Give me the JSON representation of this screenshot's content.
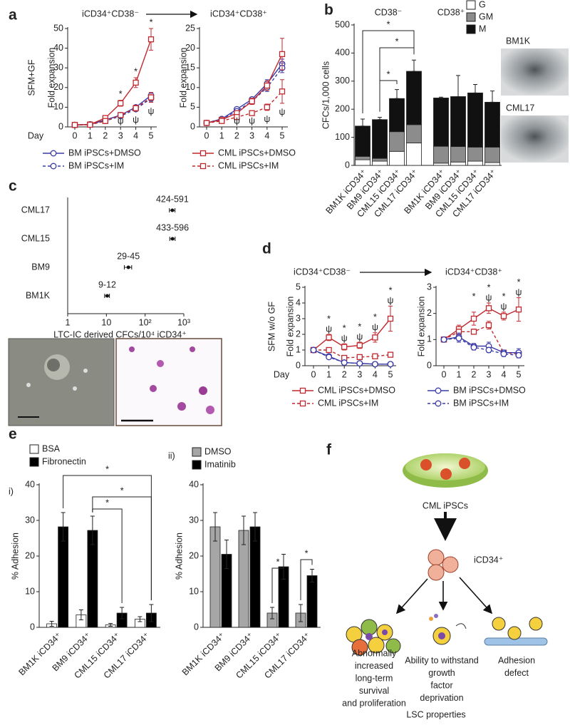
{
  "panels": [
    "a",
    "b",
    "c",
    "d",
    "e",
    "f"
  ],
  "images": {
    "bm1k": "BM1K",
    "cml17": "CML17"
  },
  "chart_data": [
    {
      "type": "line",
      "header": "iCD34⁺CD38⁻",
      "side_label": "SFM+GF",
      "ylabel": "Fold expansion",
      "xlabel": "Day",
      "x": [
        0,
        1,
        2,
        3,
        4,
        5
      ],
      "xlim": [
        0,
        5
      ],
      "xticks": [
        0,
        1,
        2,
        3,
        4,
        5
      ],
      "ylim": [
        0,
        50
      ],
      "yticks": [
        0,
        10,
        20,
        30,
        40,
        50
      ],
      "series": [
        {
          "name": "BM iPSCs+DMSO",
          "color": "#3b3ba8",
          "marker": "circle",
          "dash": false,
          "values": [
            1,
            1.3,
            3.5,
            6,
            10,
            16
          ],
          "errors": [
            0.1,
            0.2,
            0.4,
            0.6,
            1,
            1.5
          ]
        },
        {
          "name": "BM iPSCs+IM",
          "color": "#3b3ba8",
          "marker": "circle",
          "dash": true,
          "values": [
            1,
            1.2,
            3,
            5.5,
            9,
            14.5
          ],
          "errors": [
            0.1,
            0.2,
            0.4,
            0.6,
            1,
            1.5
          ]
        },
        {
          "color": "#c0282d",
          "marker": "square",
          "dash": false,
          "values": [
            1,
            1.2,
            4.5,
            12,
            22.5,
            44.5
          ],
          "errors": [
            0.1,
            0.2,
            0.5,
            1.5,
            2.5,
            5.5
          ]
        },
        {
          "color": "#c0282d",
          "marker": "square",
          "dash": true,
          "values": [
            1,
            1.1,
            3,
            6,
            9.5,
            15
          ],
          "errors": [
            0.1,
            0.2,
            0.4,
            1,
            1.5,
            2.5
          ]
        }
      ],
      "markers": [
        {
          "label": "*",
          "x": [
            3,
            4,
            5
          ]
        },
        {
          "label": "ψ",
          "x": [
            3,
            4,
            5
          ]
        }
      ]
    },
    {
      "type": "line",
      "header": "iCD34⁺CD38⁺",
      "ylabel": "Fold expansion",
      "x": [
        0,
        1,
        2,
        3,
        4,
        5
      ],
      "xlim": [
        0,
        5
      ],
      "xticks": [
        0,
        1,
        2,
        3,
        4,
        5
      ],
      "ylim": [
        0,
        25
      ],
      "yticks": [
        0,
        5,
        10,
        15,
        20,
        25
      ],
      "series": [
        {
          "color": "#3b3ba8",
          "marker": "circle",
          "dash": false,
          "values": [
            1,
            2,
            4.5,
            7,
            11,
            16
          ],
          "errors": [
            0.1,
            0.2,
            0.3,
            0.5,
            1,
            1.2
          ]
        },
        {
          "color": "#3b3ba8",
          "marker": "circle",
          "dash": true,
          "values": [
            1,
            2,
            4,
            6.5,
            10,
            15
          ],
          "errors": [
            0.1,
            0.2,
            0.3,
            0.5,
            1,
            1.2
          ]
        },
        {
          "name": "CML iPSCs+DMSO",
          "color": "#c0282d",
          "marker": "square",
          "dash": false,
          "values": [
            1,
            1.8,
            3.5,
            6.5,
            10.5,
            18.5
          ],
          "errors": [
            0.1,
            0.2,
            0.4,
            0.8,
            1.2,
            4
          ]
        },
        {
          "name": "CML iPSCs+IM",
          "color": "#c0282d",
          "marker": "square",
          "dash": true,
          "values": [
            1,
            1.5,
            2.5,
            3.5,
            5,
            9
          ],
          "errors": [
            0.1,
            0.2,
            0.3,
            0.5,
            0.8,
            3
          ]
        }
      ],
      "markers": [
        {
          "label": "ψ",
          "x": [
            2,
            3,
            4,
            5
          ]
        }
      ]
    },
    {
      "type": "stacked_bar",
      "ylabel": "CFCs/1,000 cells",
      "categories": [
        "BM1K iCD34⁺",
        "BM9 iCD34⁺",
        "CML15 iCD34⁺",
        "CML17 iCD34⁺",
        "BM1K iCD34⁺",
        "BM9 iCD34⁺",
        "CML15 iCD34⁺",
        "CML17 iCD34⁺"
      ],
      "groups": [
        {
          "label": "CD38⁻",
          "from": 0,
          "to": 3
        },
        {
          "label": "CD38⁺",
          "from": 4,
          "to": 7
        }
      ],
      "ylim": [
        0,
        500
      ],
      "yticks": [
        0,
        100,
        200,
        300,
        400,
        500
      ],
      "series": [
        {
          "name": "G",
          "color": "#ffffff",
          "values": [
            20,
            15,
            50,
            80,
            8,
            12,
            15,
            10
          ]
        },
        {
          "name": "GM",
          "color": "#8c8c8c",
          "values": [
            12,
            10,
            70,
            65,
            60,
            55,
            50,
            55
          ]
        },
        {
          "name": "M",
          "color": "#111111",
          "values": [
            108,
            138,
            118,
            190,
            172,
            178,
            193,
            160
          ],
          "errors": [
            25,
            8,
            32,
            40,
            3,
            75,
            30,
            40
          ]
        }
      ],
      "brackets": [
        {
          "label": "*",
          "from": 0,
          "to": 3
        },
        {
          "label": "*",
          "from": 1,
          "to": 3
        },
        {
          "label": "*",
          "from": 1,
          "to": 2
        }
      ]
    },
    {
      "type": "scatter",
      "xlabel": "LTC-IC derived CFCs/10⁴ iCD34⁺",
      "log_x": true,
      "categories": [
        "BM1K",
        "BM9",
        "CML15",
        "CML17"
      ],
      "values": [
        10.5,
        37,
        510,
        505
      ],
      "ranges": [
        [
          9,
          12
        ],
        [
          29,
          45
        ],
        [
          433,
          596
        ],
        [
          424,
          591
        ]
      ],
      "range_labels": [
        "9-12",
        "29-45",
        "433-596",
        "424-591"
      ],
      "xlim": [
        1,
        1000
      ],
      "xticks": [
        1,
        10,
        {
          "value": 100,
          "label": "10²"
        },
        {
          "value": 1000,
          "label": "10³"
        }
      ]
    },
    {
      "type": "line",
      "header": "iCD34⁺CD38⁻",
      "side_label": "SFM w/o GF",
      "ylabel": "Fold expansion",
      "xlabel": "Day",
      "x": [
        0,
        1,
        2,
        3,
        4,
        5
      ],
      "xlim": [
        0,
        5
      ],
      "xticks": [
        0,
        1,
        2,
        3,
        4,
        5
      ],
      "ylim": [
        0,
        5
      ],
      "yticks": [
        0,
        1,
        2,
        3,
        4,
        5
      ],
      "series": [
        {
          "name": "CML iPSCs+DMSO",
          "color": "#c0282d",
          "marker": "square",
          "dash": false,
          "values": [
            1,
            1.8,
            1.2,
            1.3,
            1.8,
            3
          ],
          "errors": [
            0.05,
            0.2,
            0.2,
            0.2,
            0.3,
            0.8
          ]
        },
        {
          "name": "CML iPSCs+IM",
          "color": "#c0282d",
          "marker": "square",
          "dash": true,
          "values": [
            1,
            1,
            0.5,
            0.55,
            0.6,
            0.7
          ],
          "errors": [
            0.05,
            0.1,
            0.1,
            0.1,
            0.1,
            0.15
          ]
        },
        {
          "color": "#3b3ba8",
          "marker": "circle",
          "dash": false,
          "values": [
            1,
            0.6,
            0.2,
            0.15,
            0.1,
            0.1
          ],
          "errors": [
            0.05,
            0.05,
            0.05,
            0.05,
            0.03,
            0.03
          ]
        },
        {
          "color": "#3b3ba8",
          "marker": "circle",
          "dash": true,
          "values": [
            1,
            0.55,
            0.2,
            0.15,
            0.1,
            0.1
          ],
          "errors": [
            0.05,
            0.05,
            0.05,
            0.05,
            0.03,
            0.03
          ]
        }
      ],
      "markers": [
        {
          "label": "*",
          "x": [
            1,
            2,
            3,
            4,
            5
          ]
        },
        {
          "label": "ψ",
          "x": [
            1,
            2,
            3,
            4,
            5
          ]
        }
      ]
    },
    {
      "type": "line",
      "header": "iCD34⁺CD38⁺",
      "ylabel": "Fold expansion",
      "x": [
        0,
        1,
        2,
        3,
        4,
        5
      ],
      "xlim": [
        0,
        5
      ],
      "xticks": [
        0,
        1,
        2,
        3,
        4,
        5
      ],
      "ylim": [
        0,
        3
      ],
      "yticks": [
        0,
        1,
        2,
        3
      ],
      "series": [
        {
          "color": "#c0282d",
          "marker": "square",
          "dash": false,
          "values": [
            1,
            1.4,
            1.8,
            2.2,
            1.9,
            2.15
          ],
          "errors": [
            0.03,
            0.15,
            0.25,
            0.2,
            0.15,
            0.45
          ]
        },
        {
          "color": "#c0282d",
          "marker": "square",
          "dash": true,
          "values": [
            1,
            1.3,
            1.3,
            1.55,
            0.5,
            0.45
          ],
          "errors": [
            0.03,
            0.1,
            0.1,
            0.15,
            0.05,
            0.05
          ]
        },
        {
          "name": "BM iPSCs+DMSO",
          "color": "#3b3ba8",
          "marker": "circle",
          "dash": false,
          "values": [
            1,
            1.1,
            0.75,
            0.75,
            0.5,
            0.5
          ],
          "errors": [
            0.03,
            0.15,
            0.1,
            0.15,
            0.1,
            0.15
          ]
        },
        {
          "name": "BM iPSCs+IM",
          "color": "#3b3ba8",
          "marker": "circle",
          "dash": true,
          "values": [
            1,
            1.05,
            0.7,
            0.6,
            0.45,
            0.4
          ],
          "errors": [
            0.03,
            0.15,
            0.1,
            0.1,
            0.1,
            0.1
          ]
        }
      ],
      "markers": [
        {
          "label": "*",
          "x": [
            2,
            3,
            4,
            5
          ]
        },
        {
          "label": "ψ",
          "x": [
            3,
            4,
            5
          ]
        }
      ]
    },
    {
      "type": "bar",
      "sublabel": "i)",
      "ylabel": "% Adhesion",
      "categories": [
        "BM1K iCD34⁺",
        "BM9 iCD34⁺",
        "CML15 iCD34⁺",
        "CML17 iCD34⁺"
      ],
      "ylim": [
        0,
        40
      ],
      "yticks": [
        0,
        10,
        20,
        30,
        40
      ],
      "series": [
        {
          "name": "BSA",
          "color": "#ffffff",
          "values": [
            1,
            3.5,
            0.7,
            2.3
          ],
          "errors": [
            0.7,
            1.4,
            0.4,
            0.7
          ]
        },
        {
          "name": "Fibronectin",
          "color": "#000000",
          "values": [
            28.2,
            27.2,
            4,
            4
          ],
          "errors": [
            4,
            4,
            1.6,
            2.4
          ]
        }
      ],
      "brackets": [
        {
          "label": "*",
          "from": [
            1,
            0
          ],
          "to": [
            1,
            3
          ]
        },
        {
          "label": "*",
          "from": [
            1,
            1
          ],
          "to": [
            1,
            3
          ]
        },
        {
          "label": "*",
          "from": [
            1,
            1
          ],
          "to": [
            1,
            2
          ]
        }
      ]
    },
    {
      "type": "bar",
      "sublabel": "ii)",
      "ylabel": "% Adhesion",
      "categories": [
        "BM1K iCD34⁺",
        "BM9 iCD34⁺",
        "CML15 iCD34⁺",
        "CML17 iCD34⁺"
      ],
      "ylim": [
        0,
        40
      ],
      "yticks": [
        0,
        10,
        20,
        30,
        40
      ],
      "series": [
        {
          "name": "DMSO",
          "color": "#a6a6a6",
          "values": [
            28.2,
            27.2,
            4,
            4
          ],
          "errors": [
            4,
            4,
            1.6,
            2.4
          ]
        },
        {
          "name": "Imatinib",
          "color": "#000000",
          "values": [
            20.5,
            28.2,
            17,
            14.5
          ],
          "errors": [
            4,
            4,
            3.5,
            1.8
          ]
        }
      ],
      "brackets": [
        {
          "label": "*",
          "from": [
            0,
            2
          ],
          "to": [
            1,
            2
          ]
        },
        {
          "label": "*",
          "from": [
            0,
            3
          ],
          "to": [
            1,
            3
          ]
        }
      ]
    }
  ],
  "diagram": {
    "dish_label": "CML iPSCs",
    "cell_label": "iCD34⁺",
    "outcomes": [
      [
        "Abnormally",
        "increased",
        "long-term",
        "survival",
        "and proliferation"
      ],
      [
        "Ability to withstand",
        "growth",
        "factor",
        "deprivation"
      ],
      [
        "Adhesion",
        "defect"
      ]
    ],
    "footer": "LSC properties"
  }
}
